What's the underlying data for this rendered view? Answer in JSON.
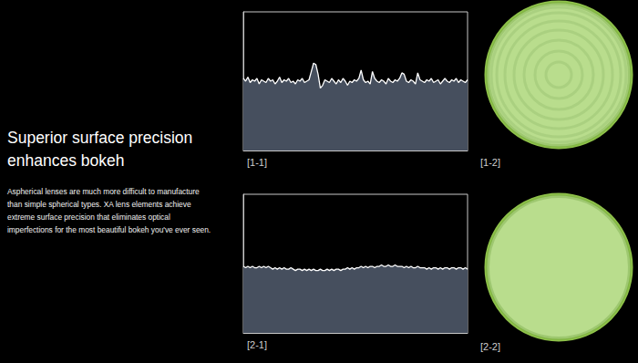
{
  "headline": [
    "Superior surface precision",
    "enhances bokeh"
  ],
  "body_lines": [
    "Aspherical lenses are much more difficult to manufacture",
    "than simple spherical types. XA lens elements achieve",
    "extreme surface precision that eliminates optical",
    "imperfections for the most beautiful bokeh you've ever seen."
  ],
  "chart_data": [
    {
      "type": "area",
      "title": "[1-1]",
      "color": "#ffffff",
      "x": [
        0,
        1,
        2,
        3,
        4,
        5,
        6,
        7,
        8,
        9,
        10,
        11,
        12,
        13,
        14,
        15,
        16,
        17,
        18,
        19,
        20,
        21,
        22,
        23,
        24,
        25,
        26,
        27,
        28,
        29,
        30,
        31,
        32,
        33,
        34,
        35,
        36,
        37,
        38,
        39,
        40,
        41,
        42,
        43,
        44,
        45,
        46,
        47,
        48,
        49,
        50,
        51,
        52,
        53,
        54,
        55,
        56,
        57,
        58,
        59,
        60,
        61,
        62,
        63,
        64,
        65,
        66,
        67,
        68,
        69,
        70,
        71,
        72,
        73,
        74,
        75,
        76,
        77,
        78,
        79,
        80,
        81,
        82,
        83,
        84,
        85,
        86,
        87,
        88,
        89,
        90,
        91,
        92,
        93,
        94,
        95,
        96,
        97,
        98,
        99
      ],
      "values": [
        52,
        50,
        53,
        49,
        51,
        50,
        52,
        48,
        51,
        50,
        49,
        52,
        50,
        51,
        48,
        50,
        53,
        49,
        51,
        50,
        52,
        49,
        50,
        48,
        51,
        50,
        52,
        49,
        50,
        51,
        57,
        63,
        62,
        55,
        45,
        47,
        51,
        50,
        49,
        52,
        50,
        48,
        51,
        49,
        52,
        50,
        47,
        50,
        49,
        51,
        50,
        52,
        58,
        51,
        49,
        50,
        48,
        57,
        52,
        50,
        49,
        51,
        50,
        48,
        52,
        50,
        49,
        51,
        50,
        52,
        56,
        55,
        50,
        49,
        51,
        50,
        48,
        56,
        51,
        50,
        49,
        51,
        50,
        52,
        49,
        50,
        51,
        48,
        50,
        52,
        50,
        49,
        51,
        50,
        52,
        49,
        51,
        50,
        49,
        51
      ],
      "xlim": [
        0,
        99
      ],
      "ylim": [
        0,
        100
      ],
      "xticks": [],
      "yticks": [],
      "tick_labels": false,
      "grid": false
    },
    {
      "type": "area",
      "title": "[2-1]",
      "color": "#ffffff",
      "x": [
        0,
        1,
        2,
        3,
        4,
        5,
        6,
        7,
        8,
        9,
        10,
        11,
        12,
        13,
        14,
        15,
        16,
        17,
        18,
        19,
        20,
        21,
        22,
        23,
        24,
        25,
        26,
        27,
        28,
        29,
        30,
        31,
        32,
        33,
        34,
        35,
        36,
        37,
        38,
        39,
        40,
        41,
        42,
        43,
        44,
        45,
        46,
        47,
        48,
        49,
        50,
        51,
        52,
        53,
        54,
        55,
        56,
        57,
        58,
        59,
        60,
        61,
        62,
        63,
        64,
        65,
        66,
        67,
        68,
        69,
        70,
        71,
        72,
        73,
        74,
        75,
        76,
        77,
        78,
        79,
        80,
        81,
        82,
        83,
        84,
        85,
        86,
        87,
        88,
        89,
        90,
        91,
        92,
        93,
        94,
        95,
        96,
        97,
        98,
        99
      ],
      "values": [
        48,
        47,
        48,
        47,
        48,
        47,
        47,
        48,
        47,
        48,
        47,
        48,
        47,
        46,
        47,
        46,
        47,
        46,
        47,
        46,
        46,
        47,
        46,
        45,
        46,
        46,
        45,
        46,
        45,
        46,
        45,
        46,
        45,
        45,
        46,
        45,
        45,
        46,
        45,
        46,
        45,
        46,
        46,
        45,
        46,
        46,
        47,
        46,
        47,
        46,
        47,
        47,
        48,
        47,
        48,
        47,
        48,
        48,
        47,
        48,
        48,
        49,
        48,
        48,
        49,
        48,
        48,
        49,
        48,
        48,
        48,
        47,
        48,
        47,
        48,
        47,
        47,
        48,
        47,
        47,
        47,
        46,
        47,
        46,
        47,
        47,
        46,
        47,
        46,
        47,
        47,
        46,
        47,
        47,
        46,
        47,
        47,
        46,
        47,
        46
      ],
      "xlim": [
        0,
        99
      ],
      "ylim": [
        0,
        100
      ],
      "xticks": [],
      "yticks": [],
      "tick_labels": false,
      "grid": false
    }
  ],
  "images": [
    {
      "label": "[1-2]",
      "color": "#b9dd8d"
    },
    {
      "label": "[2-2]",
      "color": "#b9dd8d"
    }
  ]
}
